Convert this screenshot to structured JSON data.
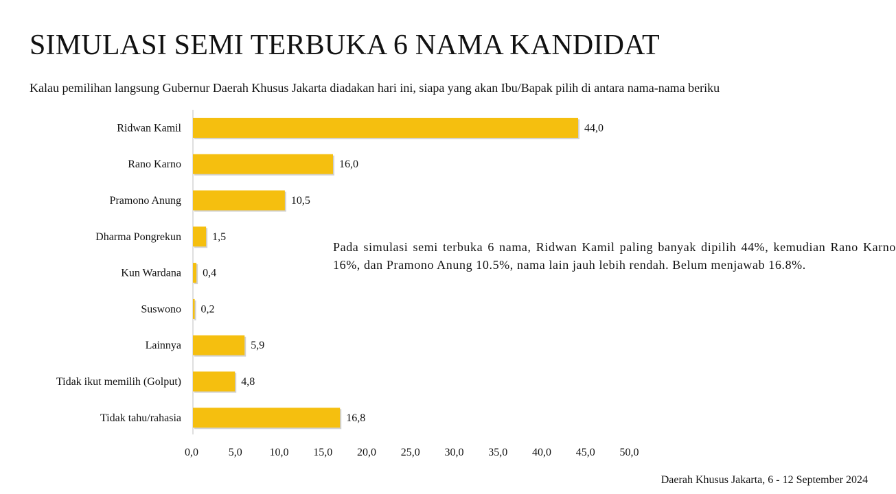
{
  "title": "SIMULASI SEMI TERBUKA 6 NAMA KANDIDAT",
  "question": "Kalau pemilihan langsung Gubernur Daerah Khusus Jakarta diadakan hari ini, siapa yang akan Ibu/Bapak pilih di antara nama-nama beriku",
  "summary": "Pada simulasi semi terbuka 6 nama, Ridwan Kamil paling banyak dipilih 44%, kemudian Rano Karno 16%, dan Pramono Anung 10.5%, nama lain jauh lebih rendah. Belum menjawab 16.8%.",
  "source": "Daerah Khusus Jakarta, 6 - 12 September 2024",
  "colors": {
    "bar": "#F5BF0F",
    "axis": "#BFBFBF",
    "text": "#111111"
  },
  "chart_data": {
    "type": "bar",
    "orientation": "horizontal",
    "categories": [
      "Ridwan Kamil",
      "Rano Karno",
      "Pramono Anung",
      "Dharma Pongrekun",
      "Kun Wardana",
      "Suswono",
      "Lainnya",
      "Tidak ikut memilih (Golput)",
      "Tidak tahu/rahasia"
    ],
    "values": [
      44.0,
      16.0,
      10.5,
      1.5,
      0.4,
      0.2,
      5.9,
      4.8,
      16.8
    ],
    "value_labels": [
      "44,0",
      "16,0",
      "10,5",
      "1,5",
      "0,4",
      "0,2",
      "5,9",
      "4,8",
      "16,8"
    ],
    "xlim": [
      0,
      50
    ],
    "x_ticks": [
      0,
      5,
      10,
      15,
      20,
      25,
      30,
      35,
      40,
      45,
      50
    ],
    "x_tick_labels": [
      "0,0",
      "5,0",
      "10,0",
      "15,0",
      "20,0",
      "25,0",
      "30,0",
      "35,0",
      "40,0",
      "45,0",
      "50,0"
    ],
    "grid": false,
    "legend": "none"
  }
}
